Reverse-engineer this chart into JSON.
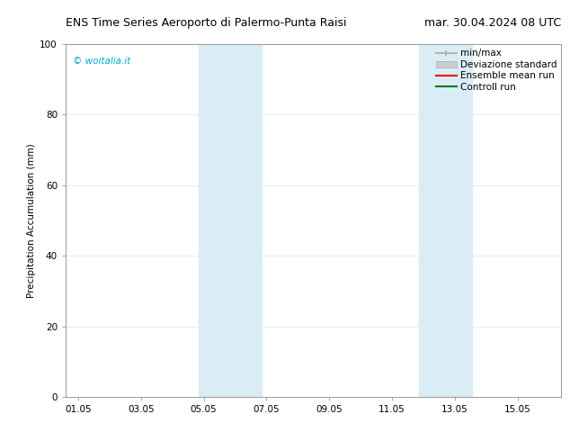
{
  "title_left": "ENS Time Series Aeroporto di Palermo-Punta Raisi",
  "title_right": "mar. 30.04.2024 08 UTC",
  "ylabel": "Precipitation Accumulation (mm)",
  "ylim": [
    0,
    100
  ],
  "watermark": "© woitalia.it",
  "watermark_color": "#00aacc",
  "bg_color": "#ffffff",
  "shaded_regions": [
    {
      "xstart": 3.85,
      "xend": 4.55,
      "color": "#daedf7"
    },
    {
      "xstart": 4.55,
      "xend": 5.85,
      "color": "#daedf7"
    },
    {
      "xstart": 10.85,
      "xend": 11.55,
      "color": "#daedf7"
    },
    {
      "xstart": 11.55,
      "xend": 12.55,
      "color": "#daedf7"
    }
  ],
  "xtick_labels": [
    "01.05",
    "03.05",
    "05.05",
    "07.05",
    "09.05",
    "11.05",
    "13.05",
    "15.05"
  ],
  "xtick_positions": [
    0,
    2,
    4,
    6,
    8,
    10,
    12,
    14
  ],
  "ytick_labels": [
    "0",
    "20",
    "40",
    "60",
    "80",
    "100"
  ],
  "ytick_positions": [
    0,
    20,
    40,
    60,
    80,
    100
  ],
  "legend_items": [
    {
      "label": "min/max",
      "color": "#aaaaaa",
      "lw": 1.2,
      "kind": "errorbar"
    },
    {
      "label": "Deviazione standard",
      "color": "#cccccc",
      "lw": 8,
      "kind": "patch"
    },
    {
      "label": "Ensemble mean run",
      "color": "#ee0000",
      "lw": 1.5,
      "kind": "line"
    },
    {
      "label": "Controll run",
      "color": "#007700",
      "lw": 1.5,
      "kind": "line"
    }
  ],
  "grid_color": "#e8e8e8",
  "title_fontsize": 9.0,
  "axis_label_fontsize": 7.5,
  "tick_fontsize": 7.5,
  "legend_fontsize": 7.5,
  "xlim": [
    -0.4,
    15.4
  ]
}
